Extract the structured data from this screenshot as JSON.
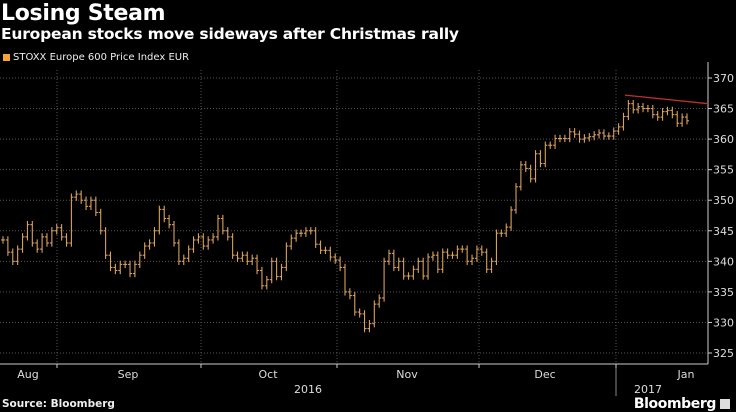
{
  "header": {
    "title": "Losing Steam",
    "subtitle": "European stocks move sideways after Christmas rally"
  },
  "footer": {
    "source": "Source: Bloomberg",
    "brand": "Bloomberg"
  },
  "chart_data": {
    "type": "ohlc",
    "legend": [
      {
        "name": "STOXX Europe 600 Price Index EUR",
        "color": "#f6a33a"
      }
    ],
    "legend_position": "top-left",
    "bar_color": "#d9a15a",
    "y_axis": {
      "side": "right",
      "ylim": [
        325,
        370
      ],
      "ticks": [
        325,
        330,
        335,
        340,
        345,
        350,
        355,
        360,
        365,
        370
      ]
    },
    "x_axis": {
      "months": [
        "Aug",
        "Sep",
        "Oct",
        "Nov",
        "Dec",
        "Jan"
      ],
      "years": [
        "2016",
        "2017"
      ]
    },
    "grid": true,
    "series": [
      {
        "name": "STOXX Europe 600 Price Index EUR",
        "close": [
          343.5,
          341.5,
          340,
          342,
          344,
          346,
          343,
          342,
          344,
          343,
          345,
          345.5,
          344,
          343,
          350.5,
          351,
          350,
          349,
          350,
          348,
          345,
          341,
          339,
          338.5,
          339.5,
          339.5,
          338,
          339.5,
          341,
          342.5,
          343,
          345,
          348.5,
          347,
          346,
          343,
          340,
          340.5,
          342,
          343.5,
          344,
          342.5,
          343.5,
          344,
          347,
          345,
          344,
          341,
          340.5,
          341,
          340,
          340.5,
          338.5,
          336,
          337,
          340,
          337.5,
          339,
          342.5,
          343.8,
          344.6,
          344.6,
          345,
          345,
          342.8,
          341.8,
          341.8,
          340.7,
          340.2,
          339,
          335,
          334.4,
          331.7,
          331.4,
          329,
          329.8,
          333,
          334,
          340,
          341.3,
          339,
          340,
          337.6,
          337.6,
          338.7,
          340,
          337.6,
          340.7,
          341,
          338.7,
          341.5,
          341,
          341,
          342,
          342,
          340,
          340.5,
          342,
          341.5,
          338.7,
          340,
          344.6,
          344.6,
          345.6,
          348.4,
          352.2,
          355.8,
          355.2,
          353.5,
          357.6,
          356,
          359,
          359,
          360.1,
          360.1,
          360.1,
          361.2,
          360.8,
          360,
          360.2,
          360.4,
          360.7,
          361,
          360.5,
          360.5,
          361.3,
          362,
          363.7,
          365.8,
          364.8,
          365.3,
          365,
          365,
          364,
          363.6,
          364.5,
          364.7,
          364,
          362.6,
          363.6,
          363
        ]
      }
    ],
    "trendline": {
      "color": "#c0312b",
      "start": 367.2,
      "end": 365.8
    }
  }
}
